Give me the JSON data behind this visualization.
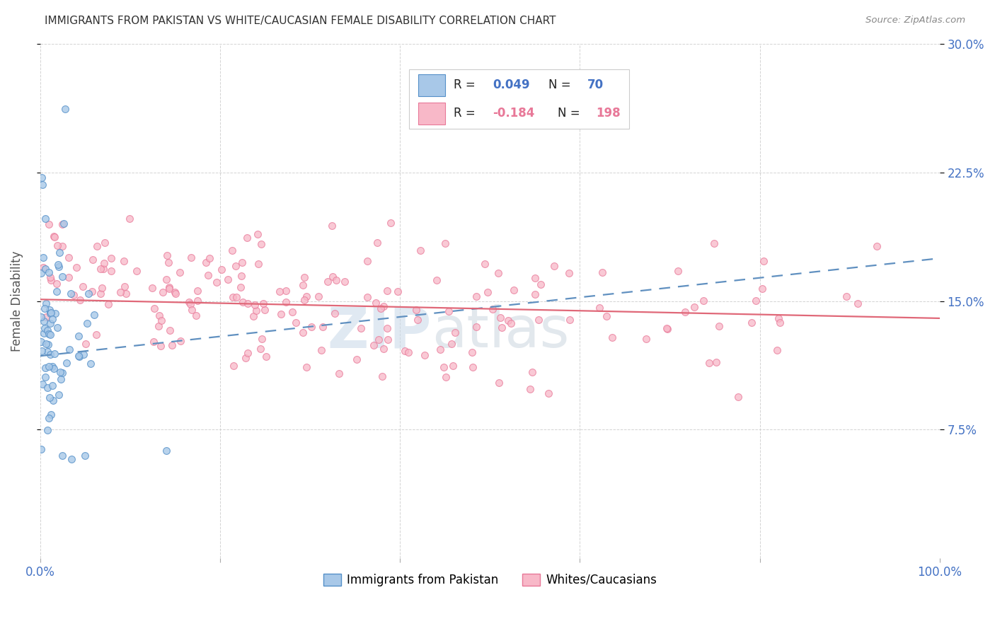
{
  "title": "IMMIGRANTS FROM PAKISTAN VS WHITE/CAUCASIAN FEMALE DISABILITY CORRELATION CHART",
  "source": "Source: ZipAtlas.com",
  "ylabel": "Female Disability",
  "xlim": [
    0,
    1.0
  ],
  "ylim": [
    0,
    0.3
  ],
  "xtick_positions": [
    0.0,
    0.2,
    0.4,
    0.6,
    0.8,
    1.0
  ],
  "xticklabels": [
    "0.0%",
    "",
    "",
    "",
    "",
    "100.0%"
  ],
  "ytick_positions": [
    0.075,
    0.15,
    0.225,
    0.3
  ],
  "ytick_labels": [
    "7.5%",
    "15.0%",
    "22.5%",
    "30.0%"
  ],
  "blue_scatter_color": "#a8c8e8",
  "blue_edge_color": "#5590c8",
  "pink_scatter_color": "#f8b8c8",
  "pink_edge_color": "#e87898",
  "blue_line_color": "#6090c0",
  "pink_line_color": "#e06878",
  "title_color": "#333333",
  "axis_label_color": "#555555",
  "tick_color": "#4472c4",
  "grid_color": "#c8c8c8",
  "background_color": "#ffffff",
  "blue_R": 0.049,
  "blue_N": 70,
  "pink_R": -0.184,
  "pink_N": 198,
  "blue_line_start_y": 0.118,
  "blue_line_end_y": 0.175,
  "pink_line_start_y": 0.151,
  "pink_line_end_y": 0.14,
  "watermark_zip_color": "#c8d8e8",
  "watermark_atlas_color": "#c0ccd8",
  "legend_R_color": "#4472c4",
  "legend_N_color": "#4472c4",
  "legend_neg_R_color": "#e87898"
}
